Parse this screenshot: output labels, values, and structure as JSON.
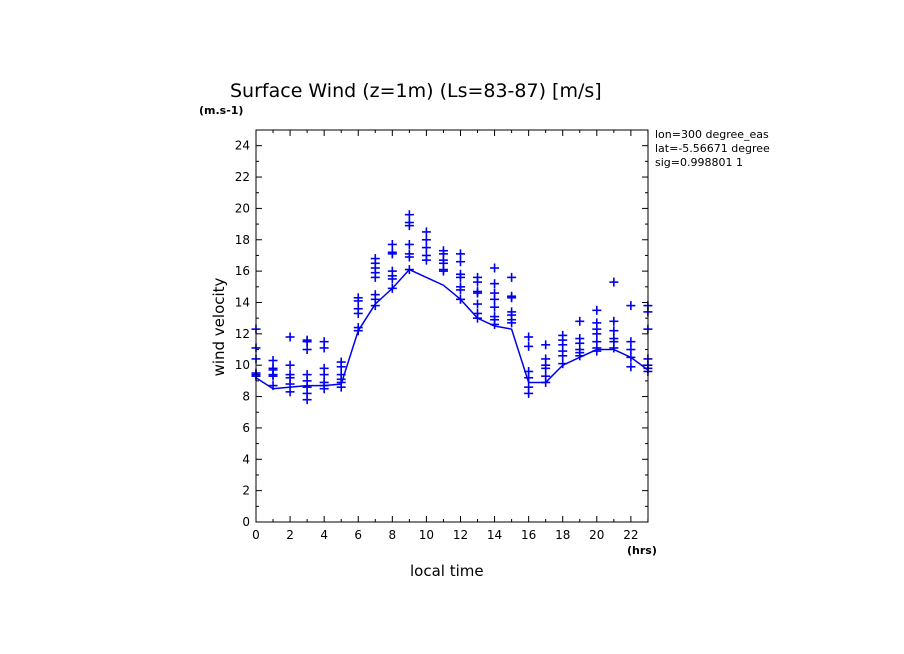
{
  "chart_data": {
    "type": "scatter",
    "title": "Surface Wind (z=1m) (Ls=83-87) [m/s]",
    "xlabel": "local time",
    "ylabel": "wind velocity",
    "x_unit": "(hrs)",
    "y_unit": "(m.s-1)",
    "xlim": [
      0,
      23
    ],
    "ylim": [
      0,
      25
    ],
    "x_ticks": [
      0,
      2,
      4,
      6,
      8,
      10,
      12,
      14,
      16,
      18,
      20,
      22
    ],
    "y_ticks": [
      0,
      2,
      4,
      6,
      8,
      10,
      12,
      14,
      16,
      18,
      20,
      22,
      24
    ],
    "grid": false,
    "color": "#0000ee",
    "info_lines": [
      "lon=300 degree_eas",
      "lat=-5.56671 degree",
      "sig=0.998801 1"
    ],
    "mean_line": {
      "x": [
        0,
        1,
        2,
        3,
        4,
        5,
        6,
        7,
        8,
        9,
        10,
        11,
        12,
        13,
        14,
        15,
        16,
        17,
        18,
        19,
        20,
        21,
        22,
        23
      ],
      "y": [
        9.2,
        8.5,
        8.6,
        8.7,
        8.7,
        8.8,
        12.2,
        13.9,
        14.9,
        16.1,
        15.6,
        15.1,
        14.2,
        13.0,
        12.5,
        12.3,
        8.9,
        8.9,
        10.0,
        10.5,
        11.0,
        11.0,
        10.5,
        9.7
      ]
    },
    "points": [
      {
        "x": 0,
        "y": [
          12.3,
          11.1,
          10.4,
          9.5,
          9.4,
          9.3
        ]
      },
      {
        "x": 1,
        "y": [
          10.3,
          9.8,
          9.7,
          9.4,
          9.3,
          8.7
        ]
      },
      {
        "x": 2,
        "y": [
          11.8,
          10.0,
          9.4,
          9.2,
          8.8,
          8.3
        ]
      },
      {
        "x": 3,
        "y": [
          11.6,
          11.5,
          11.0,
          9.4,
          9.0,
          8.6,
          8.2,
          7.8
        ]
      },
      {
        "x": 4,
        "y": [
          11.5,
          11.1,
          9.8,
          9.4,
          8.9,
          8.7,
          8.5
        ]
      },
      {
        "x": 5,
        "y": [
          10.2,
          9.9,
          9.4,
          9.1,
          8.9,
          8.6
        ]
      },
      {
        "x": 6,
        "y": [
          14.3,
          14.1,
          13.6,
          13.3,
          12.4,
          12.2
        ]
      },
      {
        "x": 7,
        "y": [
          16.8,
          16.5,
          16.2,
          15.9,
          15.6,
          14.5,
          14.2,
          13.8
        ]
      },
      {
        "x": 8,
        "y": [
          17.7,
          17.2,
          17.1,
          16.0,
          15.7,
          15.5,
          14.9
        ]
      },
      {
        "x": 9,
        "y": [
          19.6,
          19.1,
          18.9,
          17.7,
          17.1,
          16.9,
          16.1
        ]
      },
      {
        "x": 10,
        "y": [
          18.5,
          18.0,
          17.5,
          17.0,
          16.7
        ]
      },
      {
        "x": 11,
        "y": [
          17.3,
          17.1,
          16.7,
          16.5,
          16.1,
          16.0
        ]
      },
      {
        "x": 12,
        "y": [
          17.1,
          16.6,
          15.8,
          15.6,
          15.0,
          14.8,
          14.2
        ]
      },
      {
        "x": 13,
        "y": [
          15.6,
          15.3,
          14.7,
          14.6,
          13.9,
          13.3,
          13.0
        ]
      },
      {
        "x": 14,
        "y": [
          16.2,
          15.2,
          14.6,
          14.2,
          13.7,
          13.1,
          12.9,
          12.6
        ]
      },
      {
        "x": 15,
        "y": [
          15.6,
          14.4,
          14.3,
          13.4,
          13.2,
          12.9,
          12.7
        ]
      },
      {
        "x": 16,
        "y": [
          11.8,
          11.2,
          9.6,
          9.2,
          8.6,
          8.2
        ]
      },
      {
        "x": 17,
        "y": [
          11.3,
          10.4,
          10.0,
          9.8,
          9.3,
          8.9
        ]
      },
      {
        "x": 18,
        "y": [
          11.9,
          11.6,
          11.3,
          10.9,
          10.6,
          10.1
        ]
      },
      {
        "x": 19,
        "y": [
          12.8,
          11.7,
          11.4,
          11.0,
          10.8,
          10.6
        ]
      },
      {
        "x": 20,
        "y": [
          13.5,
          12.7,
          12.3,
          12.0,
          11.5,
          11.1,
          10.9
        ]
      },
      {
        "x": 21,
        "y": [
          15.3,
          12.8,
          12.2,
          11.7,
          11.5,
          11.1
        ]
      },
      {
        "x": 22,
        "y": [
          13.8,
          11.5,
          11.0,
          10.5,
          9.9
        ]
      },
      {
        "x": 23,
        "y": [
          13.8,
          13.4,
          12.3,
          10.4,
          10.0,
          9.8,
          9.6
        ]
      }
    ]
  }
}
